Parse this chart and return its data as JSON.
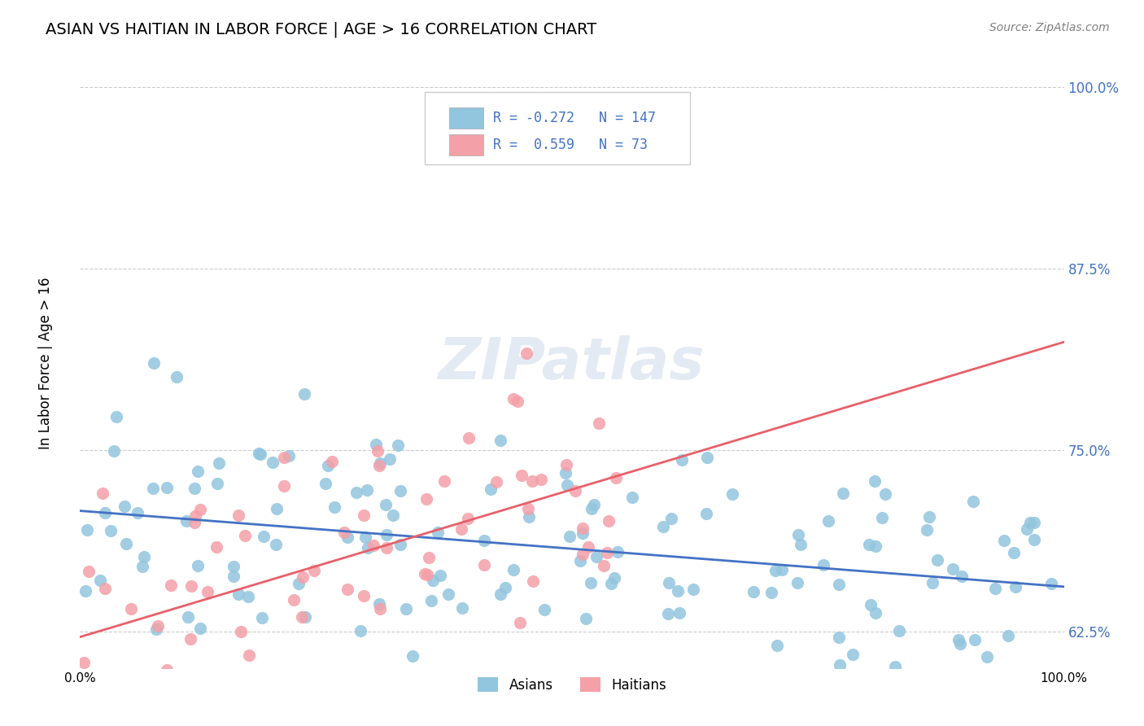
{
  "title": "ASIAN VS HAITIAN IN LABOR FORCE | AGE > 16 CORRELATION CHART",
  "source": "Source: ZipAtlas.com",
  "ylabel": "In Labor Force | Age > 16",
  "xlabel": "",
  "xlim": [
    0.0,
    100.0
  ],
  "ylim": [
    60.0,
    102.0
  ],
  "yticks": [
    62.5,
    75.0,
    87.5,
    100.0
  ],
  "xticks": [
    0.0,
    100.0
  ],
  "asian_R": -0.272,
  "asian_N": 147,
  "haitian_R": 0.559,
  "haitian_N": 73,
  "asian_color": "#92C5DE",
  "haitian_color": "#F4A0A8",
  "asian_line_color": "#4472C4",
  "haitian_line_color": "#E8606A",
  "title_fontsize": 15,
  "legend_text_color": "#4472C4",
  "watermark": "ZIPatlas",
  "background_color": "#FFFFFF",
  "grid_color": "#CCCCCC",
  "seed_asian": 42,
  "seed_haitian": 99
}
